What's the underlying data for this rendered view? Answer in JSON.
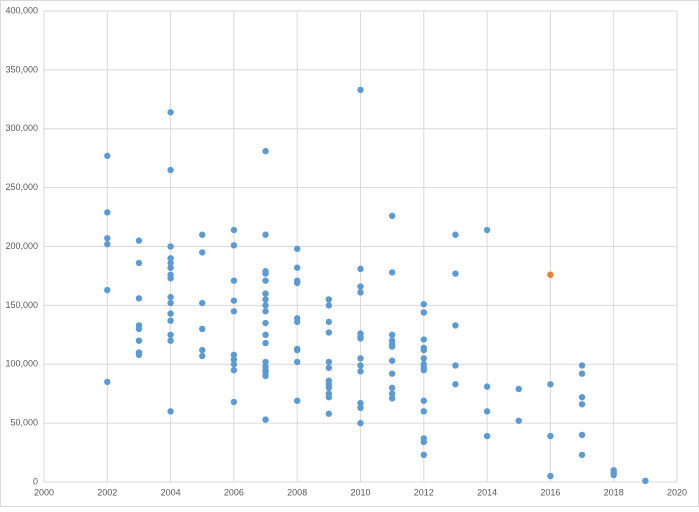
{
  "chart_data": {
    "type": "scatter",
    "xlim": [
      2000,
      2020
    ],
    "xticks": [
      2000,
      2002,
      2004,
      2006,
      2008,
      2010,
      2012,
      2014,
      2016,
      2018,
      2020
    ],
    "ylim": [
      0,
      400000
    ],
    "yticks": [
      0,
      {
        "value": 50000,
        "label": "50,000"
      },
      {
        "value": 100000,
        "label": "100,000"
      },
      {
        "value": 150000,
        "label": "150,000"
      },
      {
        "value": 200000,
        "label": "200,000"
      },
      {
        "value": 250000,
        "label": "250,000"
      },
      {
        "value": 300000,
        "label": "300,000"
      },
      {
        "value": 350000,
        "label": "350,000"
      },
      {
        "value": 400000,
        "label": "400,000"
      }
    ],
    "grid": true,
    "series": [
      {
        "color": "#5b9bd5",
        "x": [
          2002,
          2002,
          2002,
          2002,
          2002,
          2002,
          2003,
          2003,
          2003,
          2003,
          2003,
          2003,
          2003,
          2003,
          2004,
          2004,
          2004,
          2004,
          2004,
          2004,
          2004,
          2004,
          2004,
          2004,
          2004,
          2004,
          2004,
          2004,
          2004,
          2005,
          2005,
          2005,
          2005,
          2005,
          2005,
          2006,
          2006,
          2006,
          2006,
          2006,
          2006,
          2006,
          2006,
          2006,
          2006,
          2007,
          2007,
          2007,
          2007,
          2007,
          2007,
          2007,
          2007,
          2007,
          2007,
          2007,
          2007,
          2007,
          2007,
          2007,
          2007,
          2007,
          2007,
          2008,
          2008,
          2008,
          2008,
          2008,
          2008,
          2008,
          2008,
          2008,
          2008,
          2009,
          2009,
          2009,
          2009,
          2009,
          2009,
          2009,
          2009,
          2009,
          2009,
          2009,
          2009,
          2010,
          2010,
          2010,
          2010,
          2010,
          2010,
          2010,
          2010,
          2010,
          2010,
          2010,
          2010,
          2010,
          2011,
          2011,
          2011,
          2011,
          2011,
          2011,
          2011,
          2011,
          2011,
          2011,
          2011,
          2012,
          2012,
          2012,
          2012,
          2012,
          2012,
          2012,
          2012,
          2012,
          2012,
          2012,
          2012,
          2012,
          2012,
          2013,
          2013,
          2013,
          2013,
          2013,
          2014,
          2014,
          2014,
          2014,
          2015,
          2015,
          2016,
          2016,
          2016,
          2017,
          2017,
          2017,
          2017,
          2017,
          2017,
          2018,
          2018,
          2018,
          2019
        ],
        "values": [
          277000,
          229000,
          207000,
          202000,
          163000,
          85000,
          205000,
          186000,
          156000,
          133000,
          130000,
          120000,
          110000,
          108000,
          314000,
          265000,
          200000,
          190000,
          186000,
          182000,
          176000,
          173000,
          157000,
          152000,
          143000,
          137000,
          125000,
          120000,
          60000,
          210000,
          195000,
          152000,
          130000,
          112000,
          107000,
          214000,
          201000,
          171000,
          154000,
          145000,
          108000,
          104000,
          100000,
          95000,
          68000,
          281000,
          210000,
          179000,
          177000,
          171000,
          160000,
          155000,
          150000,
          145000,
          135000,
          125000,
          118000,
          102000,
          98000,
          95000,
          93000,
          90000,
          53000,
          198000,
          182000,
          171000,
          169000,
          139000,
          136000,
          113000,
          112000,
          102000,
          69000,
          155000,
          150000,
          136000,
          127000,
          102000,
          97000,
          86000,
          83000,
          80000,
          75000,
          72000,
          58000,
          333000,
          181000,
          166000,
          161000,
          126000,
          123000,
          122000,
          105000,
          99000,
          94000,
          67000,
          63000,
          50000,
          226000,
          178000,
          125000,
          120000,
          117000,
          115000,
          103000,
          92000,
          80000,
          75000,
          71000,
          151000,
          144000,
          121000,
          114000,
          112000,
          105000,
          100000,
          97000,
          95000,
          69000,
          60000,
          37000,
          34000,
          23000,
          210000,
          177000,
          133000,
          99000,
          83000,
          214000,
          81000,
          60000,
          39000,
          79000,
          52000,
          83000,
          39000,
          5000,
          99000,
          92000,
          72000,
          66000,
          40000,
          23000,
          10000,
          8000,
          6000,
          1000
        ]
      },
      {
        "color": "#ed7d31",
        "x": [
          2016
        ],
        "values": [
          176000
        ]
      }
    ]
  }
}
